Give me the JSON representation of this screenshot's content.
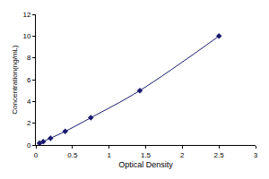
{
  "chart_data": {
    "type": "line",
    "x_label": "Optical Density",
    "y_label": "Concentration(ng/mL)",
    "x": [
      0.05,
      0.1,
      0.2,
      0.4,
      0.75,
      1.42,
      2.5
    ],
    "values": [
      0.156,
      0.312,
      0.625,
      1.25,
      2.5,
      5,
      10
    ],
    "color": "#1a1a6e",
    "marker": "diamond",
    "line_style": "solid",
    "xlim": [
      0,
      3
    ],
    "xticks": [
      0,
      0.5,
      1,
      1.5,
      2,
      2.5,
      3
    ],
    "ylim": [
      0,
      12
    ],
    "yticks": [
      0,
      2,
      4,
      6,
      8,
      10,
      12
    ],
    "grid": false
  }
}
